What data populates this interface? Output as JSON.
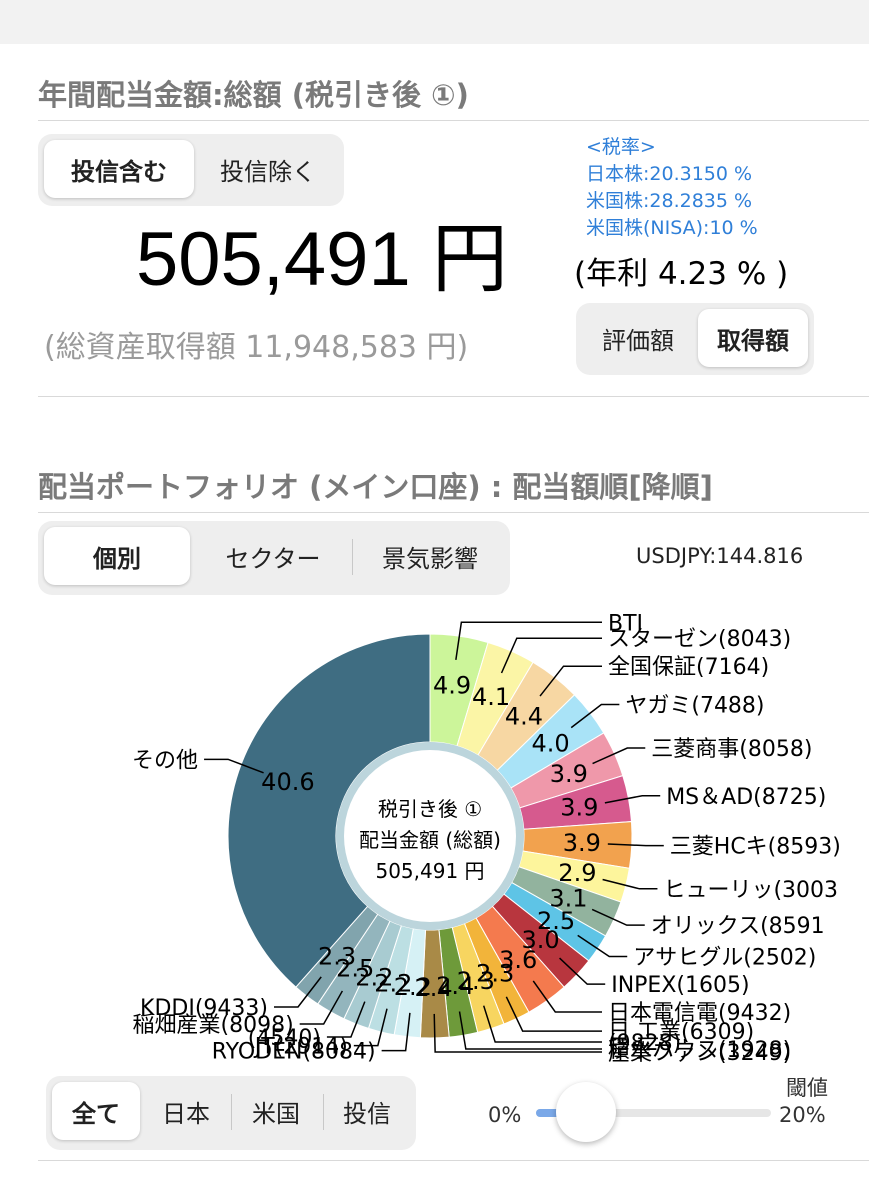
{
  "summary": {
    "title": "年間配当金額:総額 (税引き後 ①)",
    "fund_toggle": [
      "投信含む",
      "投信除く"
    ],
    "fund_toggle_selected": 0,
    "tax": {
      "header": "<税率>",
      "japan": "日本株:20.3150 %",
      "us": "米国株:28.2835 %",
      "us_nisa": "米国株(NISA):10 %"
    },
    "total_amount": "505,491 円",
    "annual_yield": "(年利 4.23 % )",
    "total_cost": "(総資産取得額 11,948,583 円)",
    "basis_toggle": [
      "評価額",
      "取得額"
    ],
    "basis_toggle_selected": 1
  },
  "portfolio": {
    "title": "配当ポートフォリオ (メイン口座) : 配当額順[降順]",
    "view_toggle": [
      "個別",
      "セクター",
      "景気影響"
    ],
    "view_toggle_selected": 0,
    "usdjpy": "USDJPY:144.816",
    "center_text": [
      "税引き後 ①",
      "配当金額 (総額)",
      "505,491 円"
    ],
    "market_filter": [
      "全て",
      "日本",
      "米国",
      "投信"
    ],
    "market_filter_selected": 0,
    "threshold": {
      "label": "閾値",
      "min_label": "0%",
      "max_label": "20%",
      "value": 0.02
    }
  },
  "chart_data": {
    "type": "pie",
    "unit": "%",
    "slices": [
      {
        "label": "BTI",
        "value": 4.9,
        "color": "#ccf59a"
      },
      {
        "label": "スターゼン(8043)",
        "value": 4.1,
        "color": "#fbf5a6"
      },
      {
        "label": "全国保証(7164)",
        "value": 4.4,
        "color": "#f7d7a3"
      },
      {
        "label": "ヤガミ(7488)",
        "value": 4.0,
        "color": "#a9e3f7"
      },
      {
        "label": "三菱商事(8058)",
        "value": 3.9,
        "color": "#ef98aa"
      },
      {
        "label": "MS＆AD(8725)",
        "value": 3.9,
        "color": "#d65a8e"
      },
      {
        "label": "三菱HCキ(8593)",
        "value": 3.9,
        "color": "#f2a24e"
      },
      {
        "label": "ヒューリッ(3003",
        "value": 2.9,
        "color": "#fdf59c"
      },
      {
        "label": "オリックス(8591",
        "value": 3.1,
        "color": "#92b39e"
      },
      {
        "label": "アサヒグル(2502)",
        "value": 2.5,
        "color": "#5ec4e6"
      },
      {
        "label": "INPEX(1605)",
        "value": 3.0,
        "color": "#b8363e"
      },
      {
        "label": "日本電信電(9432)",
        "value": 3.6,
        "color": "#f47a4e"
      },
      {
        "label": "日 工業(6309)",
        "value": 2.3,
        "color": "#f2b43a"
      },
      {
        "label": "(9828)",
        "value": 2.3,
        "color": "#f7d560"
      },
      {
        "label": "積水ハウス(1928)",
        "value": 2.4,
        "color": "#6e9a3a"
      },
      {
        "label": "産業ファン(3249)",
        "value": 2.4,
        "color": "#a98a47"
      },
      {
        "label": "RYODEN(8084)",
        "value": 2.2,
        "color": "#d6f1f5"
      },
      {
        "label": "JT(2914)",
        "value": 2.2,
        "color": "#bcdfe3"
      },
      {
        "label": "(4540)",
        "value": 2.2,
        "color": "#a8cbd1"
      },
      {
        "label": "稲畑産業(8098)",
        "value": 2.5,
        "color": "#93b5bd"
      },
      {
        "label": "KDDI(9433)",
        "value": 2.3,
        "color": "#81a4ad"
      },
      {
        "label": "その他",
        "value": 40.6,
        "color": "#3f6d82"
      }
    ]
  }
}
